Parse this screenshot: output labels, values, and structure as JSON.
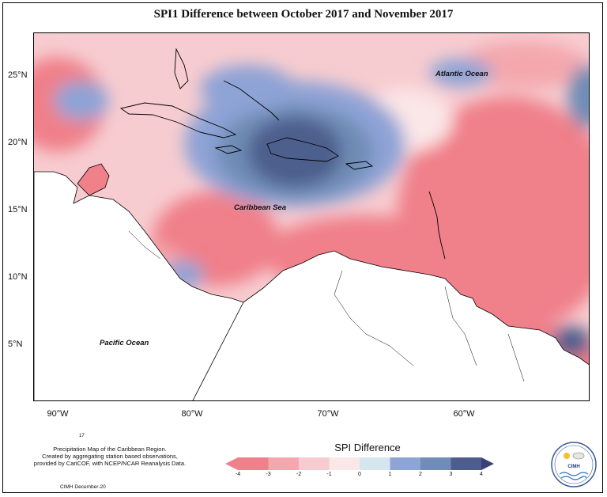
{
  "title": "SPI1 Difference between October 2017 and November 2017",
  "axes": {
    "lat_labels": [
      "25°N",
      "20°N",
      "15°N",
      "10°N",
      "5°N"
    ],
    "lon_labels": [
      "90°W",
      "80°W",
      "70°W",
      "60°W"
    ]
  },
  "regions": {
    "atlantic": "Atlantic Ocean",
    "caribbean": "Caribbean Sea",
    "pacific": "Pacific Ocean"
  },
  "footnote": {
    "line1": "Precipitation Map of the Caribbean Region.",
    "line2": "Created by aggregating station based observations,",
    "line3": "provided by CariCOF, with NCEP/NCAR Reanalysis Data.",
    "small_number": "17",
    "credit": "CIMH December-20"
  },
  "legend": {
    "title": "SPI Difference",
    "ticks": [
      "-4",
      "-3",
      "-2",
      "-1",
      "0",
      "1",
      "2",
      "3",
      "4"
    ],
    "colors": [
      "#f0808a",
      "#f4a8ae",
      "#f7ccd0",
      "#fbe6e8",
      "#d6e6ee",
      "#8ea3d6",
      "#6f8db6",
      "#4e5e8c"
    ]
  },
  "logo": {
    "name": "CIMH",
    "icons": [
      "sun-icon",
      "cloud-icon",
      "wave-icon"
    ]
  },
  "colors": {
    "strong_negative": "#f0808a",
    "strong_positive": "#4e5e8c",
    "land": "#ffffff",
    "frame": "#000000"
  }
}
